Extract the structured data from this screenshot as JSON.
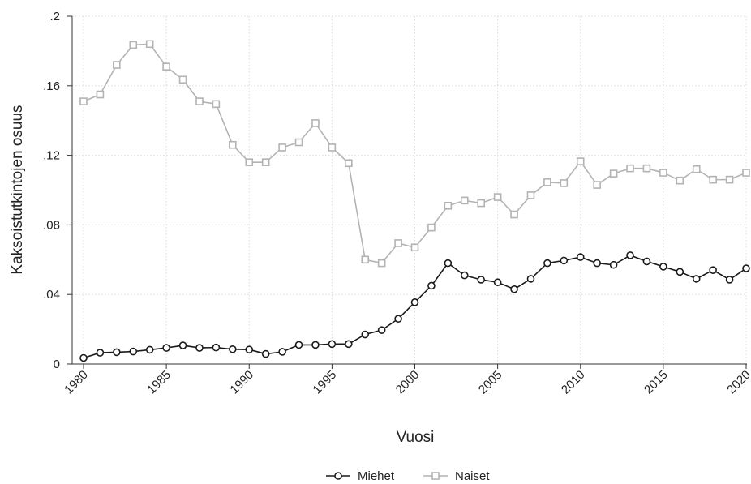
{
  "chart_data": {
    "type": "line",
    "xlabel": "Vuosi",
    "ylabel": "Kaksoistutkintojen osuus",
    "xlim": [
      1980,
      2020
    ],
    "ylim": [
      0,
      0.2
    ],
    "x_ticks": [
      1980,
      1985,
      1990,
      1995,
      2000,
      2005,
      2010,
      2015,
      2020
    ],
    "y_ticks": [
      0,
      0.04,
      0.08,
      0.12,
      0.16,
      0.2
    ],
    "y_tick_labels": [
      "0",
      ".04",
      ".08",
      ".12",
      ".16",
      ".2"
    ],
    "grid": true,
    "legend_position": "bottom",
    "x": [
      1980,
      1981,
      1982,
      1983,
      1984,
      1985,
      1986,
      1987,
      1988,
      1989,
      1990,
      1991,
      1992,
      1993,
      1994,
      1995,
      1996,
      1997,
      1998,
      1999,
      2000,
      2001,
      2002,
      2003,
      2004,
      2005,
      2006,
      2007,
      2008,
      2009,
      2010,
      2011,
      2012,
      2013,
      2014,
      2015,
      2016,
      2017,
      2018,
      2019,
      2020
    ],
    "series": [
      {
        "name": "Miehet",
        "color": "#1a1a1a",
        "marker": "circle",
        "values": [
          0.0035,
          0.0065,
          0.0068,
          0.0072,
          0.0082,
          0.0093,
          0.0107,
          0.0093,
          0.0095,
          0.0085,
          0.0083,
          0.0058,
          0.007,
          0.011,
          0.011,
          0.0115,
          0.0115,
          0.017,
          0.0195,
          0.026,
          0.0355,
          0.045,
          0.058,
          0.051,
          0.0485,
          0.047,
          0.043,
          0.049,
          0.058,
          0.0595,
          0.0615,
          0.058,
          0.057,
          0.0625,
          0.059,
          0.056,
          0.053,
          0.049,
          0.054,
          0.0485,
          0.055
        ]
      },
      {
        "name": "Naiset",
        "color": "#b3b3b3",
        "marker": "square",
        "values": [
          0.151,
          0.155,
          0.172,
          0.1835,
          0.184,
          0.171,
          0.1635,
          0.151,
          0.1495,
          0.126,
          0.116,
          0.116,
          0.1245,
          0.1275,
          0.1385,
          0.1245,
          0.1155,
          0.06,
          0.058,
          0.0695,
          0.067,
          0.0785,
          0.091,
          0.094,
          0.0925,
          0.096,
          0.086,
          0.097,
          0.1045,
          0.104,
          0.1165,
          0.103,
          0.1095,
          0.1125,
          0.1125,
          0.11,
          0.1055,
          0.112,
          0.106,
          0.106,
          0.11
        ]
      }
    ]
  }
}
